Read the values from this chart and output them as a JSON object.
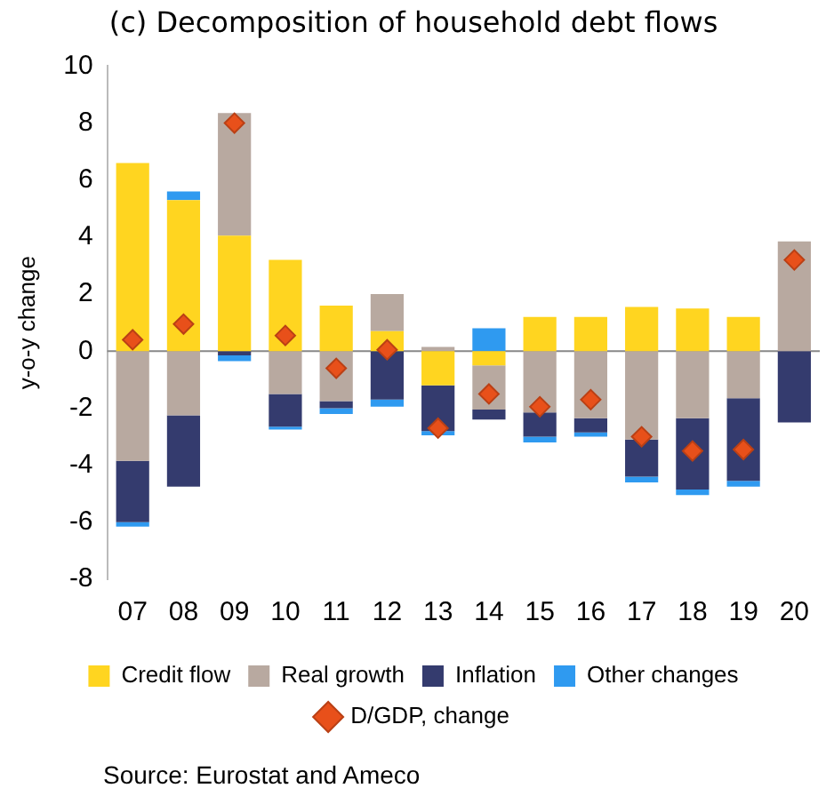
{
  "chart_data": {
    "type": "bar",
    "title": "(c) Decomposition of household debt flows",
    "ylabel": "y-o-y change",
    "annotations": [
      "Source: Eurostat and Ameco"
    ],
    "categories": [
      "07",
      "08",
      "09",
      "10",
      "11",
      "12",
      "13",
      "14",
      "15",
      "16",
      "17",
      "18",
      "19",
      "20"
    ],
    "stacked": true,
    "ylim": [
      -8,
      10
    ],
    "yticks": [
      -8,
      -6,
      -4,
      -2,
      0,
      2,
      4,
      6,
      8,
      10
    ],
    "grid": false,
    "legend": "bottom",
    "ref_lines": [
      {
        "axis": "y",
        "value": 0,
        "color": "#888888"
      }
    ],
    "series": [
      {
        "name": "Credit flow",
        "color": "#ffd520",
        "values": [
          6.6,
          5.3,
          4.05,
          3.2,
          1.6,
          0.7,
          -1.2,
          -0.5,
          1.2,
          1.2,
          1.55,
          1.5,
          1.2,
          0
        ]
      },
      {
        "name": "Real growth",
        "color": "#b8a9a0",
        "values": [
          -3.85,
          -2.25,
          4.3,
          -1.5,
          -1.75,
          1.3,
          0.15,
          -1.55,
          -2.15,
          -2.35,
          -3.1,
          -2.35,
          -1.65,
          3.85
        ]
      },
      {
        "name": "Inflation",
        "color": "#343b6e",
        "values": [
          -2.15,
          -2.5,
          -0.15,
          -1.15,
          -0.25,
          -1.7,
          -1.6,
          -0.35,
          -0.85,
          -0.5,
          -1.3,
          -2.5,
          -2.9,
          -2.5
        ]
      },
      {
        "name": "Other changes",
        "color": "#2f9af0",
        "values": [
          -0.15,
          0.3,
          -0.2,
          -0.1,
          -0.2,
          -0.25,
          -0.15,
          0.8,
          -0.2,
          -0.15,
          -0.2,
          -0.2,
          -0.2,
          0
        ]
      },
      {
        "name": "D/GDP, change",
        "type": "scatter",
        "marker": "diamond",
        "color": "#e8501a",
        "x": [
          "07",
          "08",
          "09",
          "10",
          "11",
          "12",
          "13",
          "14",
          "15",
          "16",
          "17",
          "18",
          "19",
          "20"
        ],
        "values": [
          0.4,
          0.95,
          8.0,
          0.55,
          -0.6,
          0.05,
          -2.7,
          -1.5,
          -1.95,
          -1.7,
          -3.0,
          -3.5,
          -3.45,
          3.2
        ]
      }
    ]
  }
}
